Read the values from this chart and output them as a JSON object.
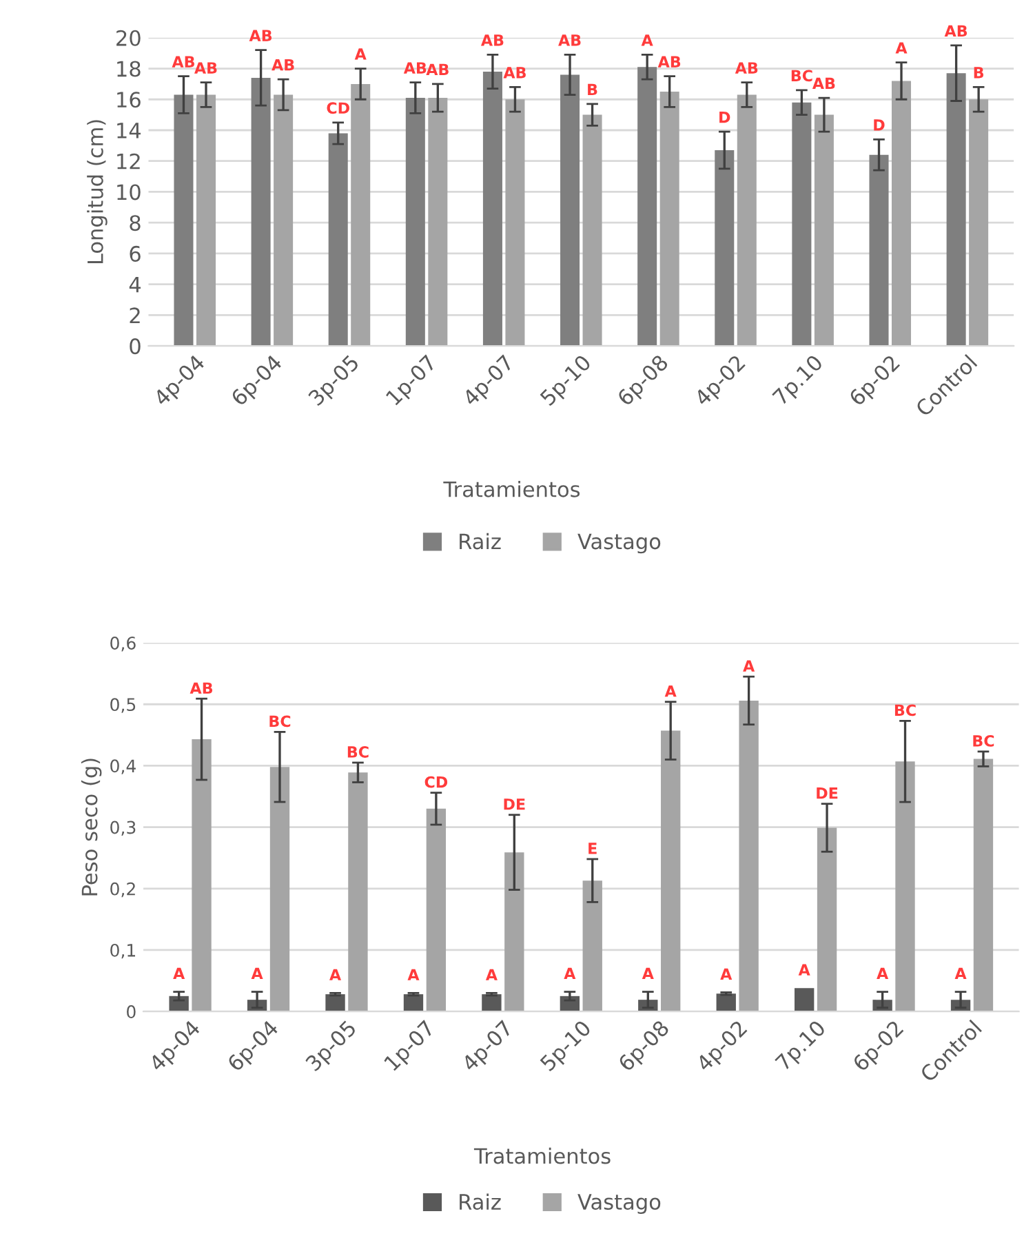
{
  "chart_data": [
    {
      "type": "bar",
      "ylabel": "Longitud (cm)",
      "xlabel": "Tratamientos",
      "categories": [
        "4p-04",
        "6p-04",
        "3p-05",
        "1p-07",
        "4p-07",
        "5p-10",
        "6p-08",
        "4p-02",
        "7p.10",
        "6p-02",
        "Control"
      ],
      "series": [
        {
          "name": "Raiz",
          "color": "#7f7f7f",
          "values": [
            16.3,
            17.4,
            13.8,
            16.1,
            17.8,
            17.6,
            18.1,
            12.7,
            15.8,
            12.4,
            17.7
          ],
          "errors": [
            1.2,
            1.8,
            0.7,
            1.0,
            1.1,
            1.3,
            0.8,
            1.2,
            0.8,
            1.0,
            1.8
          ],
          "value_labels": [
            "AB",
            "AB",
            "CD",
            "AB",
            "AB",
            "AB",
            "A",
            "D",
            "BC",
            "D",
            "AB"
          ]
        },
        {
          "name": "Vastago",
          "color": "#a5a5a5",
          "values": [
            16.3,
            16.3,
            17.0,
            16.1,
            16.0,
            15.0,
            16.5,
            16.3,
            15.0,
            17.2,
            16.0
          ],
          "errors": [
            0.8,
            1.0,
            1.0,
            0.9,
            0.8,
            0.7,
            1.0,
            0.8,
            1.1,
            1.2,
            0.8
          ],
          "value_labels": [
            "AB",
            "AB",
            "A",
            "AB",
            "AB",
            "B",
            "AB",
            "AB",
            "AB",
            "A",
            "B"
          ]
        }
      ],
      "ylim": [
        0,
        20
      ],
      "yticks": [
        0,
        2,
        4,
        6,
        8,
        10,
        12,
        14,
        16,
        18,
        20
      ],
      "grid": "y",
      "legend": "bottom"
    },
    {
      "type": "bar",
      "ylabel": "Peso seco (g)",
      "xlabel": "Tratamientos",
      "categories": [
        "4p-04",
        "6p-04",
        "3p-05",
        "1p-07",
        "4p-07",
        "5p-10",
        "6p-08",
        "4p-02",
        "7p.10",
        "6p-02",
        "Control"
      ],
      "series": [
        {
          "name": "Raiz",
          "color": "#595959",
          "values": [
            0.025,
            0.019,
            0.028,
            0.028,
            0.028,
            0.025,
            0.019,
            0.029,
            0.038,
            0.019,
            0.019
          ],
          "errors": [
            0.007,
            0.013,
            0.002,
            0.002,
            0.002,
            0.007,
            0.013,
            0.002,
            null,
            0.013,
            0.013
          ],
          "value_labels": [
            "A",
            "A",
            "A",
            "A",
            "A",
            "A",
            "A",
            "A",
            "A",
            "A",
            "A"
          ]
        },
        {
          "name": "Vastago",
          "color": "#a5a5a5",
          "values": [
            0.443,
            0.398,
            0.389,
            0.33,
            0.259,
            0.213,
            0.457,
            0.506,
            0.299,
            0.407,
            0.411
          ],
          "errors": [
            0.066,
            0.057,
            0.016,
            0.026,
            0.061,
            0.035,
            0.047,
            0.039,
            0.039,
            0.066,
            0.012
          ],
          "value_labels": [
            "AB",
            "BC",
            "BC",
            "CD",
            "DE",
            "E",
            "A",
            "A",
            "DE",
            "BC",
            "BC"
          ]
        }
      ],
      "ylim": [
        0,
        0.6
      ],
      "yticks": [
        0,
        {
          "value": 0.1,
          "label": "0,1"
        },
        {
          "value": 0.2,
          "label": "0,2"
        },
        {
          "value": 0.3,
          "label": "0,3"
        },
        {
          "value": 0.4,
          "label": "0,4"
        },
        {
          "value": 0.5,
          "label": "0,5"
        },
        {
          "value": 0.6,
          "label": "0,6"
        }
      ],
      "grid": "y",
      "legend": "bottom"
    }
  ]
}
